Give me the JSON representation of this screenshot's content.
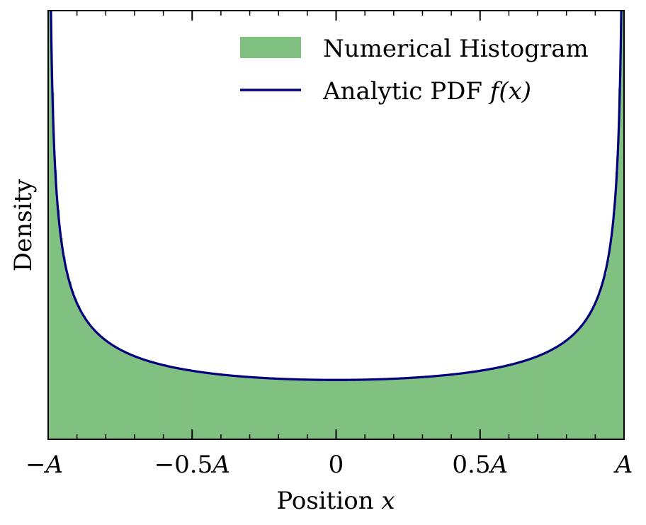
{
  "chart_data": {
    "type": "area",
    "xlabel": "Position",
    "xlabel_var": "x",
    "ylabel": "Density",
    "xlim": [
      -1,
      1
    ],
    "ylim": [
      0,
      2.3
    ],
    "x_ticks": [
      {
        "value": -1,
        "prefix": "−",
        "num": "",
        "unit": "A"
      },
      {
        "value": -0.5,
        "prefix": "−",
        "num": "0.5",
        "unit": "A"
      },
      {
        "value": 0,
        "prefix": "",
        "num": "0",
        "unit": ""
      },
      {
        "value": 0.5,
        "prefix": "",
        "num": "0.5",
        "unit": "A"
      },
      {
        "value": 1,
        "prefix": "",
        "num": "",
        "unit": "A"
      }
    ],
    "legend": {
      "placement": "top-right",
      "hist_label": "Numerical Histogram",
      "pdf_label_text": "Analytic PDF",
      "pdf_label_math": "f(x)"
    },
    "series": [
      {
        "name": "Numerical Histogram",
        "kind": "histogram",
        "color": "#80c080",
        "bins": 200,
        "noise": 0.012
      },
      {
        "name": "Analytic PDF f(x)",
        "kind": "line",
        "color": "#00007f",
        "formula": "1/(pi*sqrt(A^2-x^2))",
        "A": 1
      }
    ],
    "grid": false
  }
}
